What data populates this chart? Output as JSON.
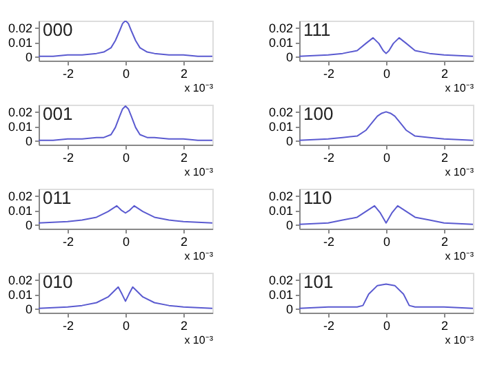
{
  "chart_data": [
    {
      "type": "line",
      "title": "000",
      "xlabel": "x 10⁻³",
      "xlim": [
        -3,
        3
      ],
      "xticks": [
        -2,
        0,
        2
      ],
      "ylim": [
        -0.003,
        0.025
      ],
      "yticks": [
        0,
        0.01,
        0.02
      ],
      "grid": false,
      "x": [
        -3,
        -2.5,
        -2,
        -1.5,
        -1,
        -0.75,
        -0.5,
        -0.35,
        -0.2,
        -0.1,
        0,
        0.1,
        0.2,
        0.35,
        0.5,
        0.75,
        1,
        1.5,
        2,
        2.5,
        3
      ],
      "series": [
        {
          "color": "#5a5ad0",
          "values": [
            0,
            0,
            0.001,
            0.001,
            0.002,
            0.003,
            0.006,
            0.011,
            0.018,
            0.023,
            0.025,
            0.023,
            0.018,
            0.011,
            0.006,
            0.003,
            0.002,
            0.001,
            0.001,
            0,
            0
          ]
        }
      ]
    },
    {
      "type": "line",
      "title": "111",
      "xlabel": "x 10⁻³",
      "xlim": [
        -3,
        3
      ],
      "xticks": [
        -2,
        0,
        2
      ],
      "ylim": [
        -0.003,
        0.025
      ],
      "yticks": [
        0,
        0.01,
        0.02
      ],
      "grid": false,
      "x": [
        -3,
        -2,
        -1.5,
        -1,
        -0.7,
        -0.45,
        -0.25,
        -0.1,
        0,
        0.1,
        0.25,
        0.45,
        0.7,
        1,
        1.5,
        2,
        3
      ],
      "series": [
        {
          "color": "#5a5ad0",
          "values": [
            0,
            0.001,
            0.002,
            0.004,
            0.009,
            0.013,
            0.009,
            0.004,
            0.002,
            0.004,
            0.009,
            0.013,
            0.009,
            0.004,
            0.002,
            0.001,
            0
          ]
        }
      ]
    },
    {
      "type": "line",
      "title": "001",
      "xlabel": "x 10⁻³",
      "xlim": [
        -3,
        3
      ],
      "xticks": [
        -2,
        0,
        2
      ],
      "ylim": [
        -0.003,
        0.025
      ],
      "yticks": [
        0,
        0.01,
        0.02
      ],
      "grid": false,
      "x": [
        -3,
        -2.5,
        -2,
        -1.5,
        -1,
        -0.75,
        -0.5,
        -0.35,
        -0.2,
        -0.1,
        0,
        0.1,
        0.2,
        0.35,
        0.5,
        0.75,
        1,
        1.5,
        2,
        2.5,
        3
      ],
      "series": [
        {
          "color": "#5a5ad0",
          "values": [
            0,
            0,
            0.001,
            0.001,
            0.002,
            0.002,
            0.004,
            0.009,
            0.017,
            0.022,
            0.024,
            0.022,
            0.017,
            0.009,
            0.004,
            0.002,
            0.002,
            0.001,
            0.001,
            0,
            0
          ]
        }
      ]
    },
    {
      "type": "line",
      "title": "100",
      "xlabel": "x 10⁻³",
      "xlim": [
        -3,
        3
      ],
      "xticks": [
        -2,
        0,
        2
      ],
      "ylim": [
        -0.003,
        0.025
      ],
      "yticks": [
        0,
        0.01,
        0.02
      ],
      "grid": false,
      "x": [
        -3,
        -2,
        -1.5,
        -1,
        -0.7,
        -0.5,
        -0.3,
        -0.15,
        0,
        0.15,
        0.3,
        0.5,
        0.7,
        1,
        1.5,
        2,
        3
      ],
      "series": [
        {
          "color": "#5a5ad0",
          "values": [
            0,
            0.001,
            0.002,
            0.003,
            0.007,
            0.012,
            0.017,
            0.019,
            0.02,
            0.019,
            0.017,
            0.012,
            0.007,
            0.003,
            0.002,
            0.001,
            0
          ]
        }
      ]
    },
    {
      "type": "line",
      "title": "011",
      "xlabel": "x 10⁻³",
      "xlim": [
        -3,
        3
      ],
      "xticks": [
        -2,
        0,
        2
      ],
      "ylim": [
        -0.003,
        0.025
      ],
      "yticks": [
        0,
        0.01,
        0.02
      ],
      "grid": false,
      "x": [
        -3,
        -2,
        -1.5,
        -1,
        -0.6,
        -0.3,
        -0.15,
        0,
        0.15,
        0.3,
        0.6,
        1,
        1.5,
        2,
        3
      ],
      "series": [
        {
          "color": "#5a5ad0",
          "values": [
            0.001,
            0.002,
            0.003,
            0.005,
            0.009,
            0.013,
            0.01,
            0.008,
            0.01,
            0.013,
            0.009,
            0.005,
            0.003,
            0.002,
            0.001
          ]
        }
      ]
    },
    {
      "type": "line",
      "title": "110",
      "xlabel": "x 10⁻³",
      "xlim": [
        -3,
        3
      ],
      "xticks": [
        -2,
        0,
        2
      ],
      "ylim": [
        -0.003,
        0.025
      ],
      "yticks": [
        0,
        0.01,
        0.02
      ],
      "grid": false,
      "x": [
        -3,
        -2,
        -1.5,
        -1,
        -0.7,
        -0.4,
        -0.2,
        0,
        0.2,
        0.4,
        0.7,
        1,
        1.5,
        2,
        3
      ],
      "series": [
        {
          "color": "#5a5ad0",
          "values": [
            0,
            0.001,
            0.003,
            0.005,
            0.009,
            0.013,
            0.008,
            0.001,
            0.008,
            0.013,
            0.009,
            0.005,
            0.003,
            0.001,
            0
          ]
        }
      ]
    },
    {
      "type": "line",
      "title": "010",
      "xlabel": "x 10⁻³",
      "xlim": [
        -3,
        3
      ],
      "xticks": [
        -2,
        0,
        2
      ],
      "ylim": [
        -0.003,
        0.025
      ],
      "yticks": [
        0,
        0.01,
        0.02
      ],
      "grid": false,
      "x": [
        -3,
        -2,
        -1.5,
        -1,
        -0.6,
        -0.25,
        -0.12,
        0,
        0.12,
        0.25,
        0.6,
        1,
        1.5,
        2,
        3
      ],
      "series": [
        {
          "color": "#5a5ad0",
          "values": [
            0,
            0.001,
            0.002,
            0.004,
            0.008,
            0.015,
            0.01,
            0.005,
            0.01,
            0.015,
            0.008,
            0.004,
            0.002,
            0.001,
            0
          ]
        }
      ]
    },
    {
      "type": "line",
      "title": "101",
      "xlabel": "x 10⁻³",
      "xlim": [
        -3,
        3
      ],
      "xticks": [
        -2,
        0,
        2
      ],
      "ylim": [
        -0.003,
        0.025
      ],
      "yticks": [
        0,
        0.01,
        0.02
      ],
      "grid": false,
      "x": [
        -3,
        -2,
        -1,
        -0.8,
        -0.6,
        -0.3,
        0,
        0.3,
        0.6,
        0.8,
        1,
        2,
        3
      ],
      "series": [
        {
          "color": "#5a5ad0",
          "values": [
            0,
            0.001,
            0.001,
            0.002,
            0.01,
            0.016,
            0.017,
            0.016,
            0.01,
            0.002,
            0.001,
            0.001,
            0
          ]
        }
      ]
    }
  ]
}
